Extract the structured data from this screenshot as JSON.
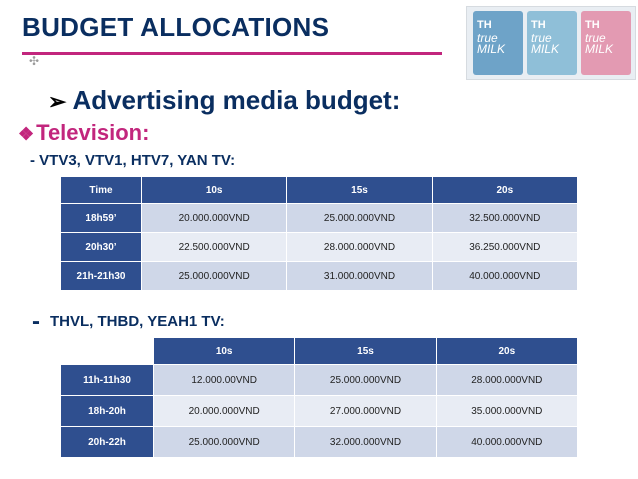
{
  "title": "BUDGET ALLOCATIONS",
  "heading": "Advertising media budget:",
  "section": "Television:",
  "group1": "- VTV3, VTV1, HTV7, YAN TV:",
  "group2": "THVL, THBD, YEAH1 TV:",
  "table1": {
    "headers": [
      "Time",
      "10s",
      "15s",
      "20s"
    ],
    "rows": [
      [
        "18h59’",
        "20.000.000VND",
        "25.000.000VND",
        "32.500.000VND"
      ],
      [
        "20h30’",
        "22.500.000VND",
        "28.000.000VND",
        "36.250.000VND"
      ],
      [
        "21h-21h30",
        "25.000.000VND",
        "31.000.000VND",
        "40.000.000VND"
      ]
    ]
  },
  "table2": {
    "headers": [
      "",
      "10s",
      "15s",
      "20s"
    ],
    "rows": [
      [
        "11h-11h30",
        "12.000.00VND",
        "25.000.000VND",
        "28.000.000VND"
      ],
      [
        "18h-20h",
        "20.000.000VND",
        "27.000.000VND",
        "35.000.000VND"
      ],
      [
        "20h-22h",
        "25.000.000VND",
        "32.000.000VND",
        "40.000.000VND"
      ]
    ]
  },
  "photo": {
    "brand": "TH",
    "label1": "true",
    "label2": "MILK"
  },
  "colors": {
    "navy": "#0a2e60",
    "magenta": "#c2267d",
    "table_header": "#2f4f8f",
    "row_dark": "#cfd7e8",
    "row_light": "#e8ecf4"
  }
}
